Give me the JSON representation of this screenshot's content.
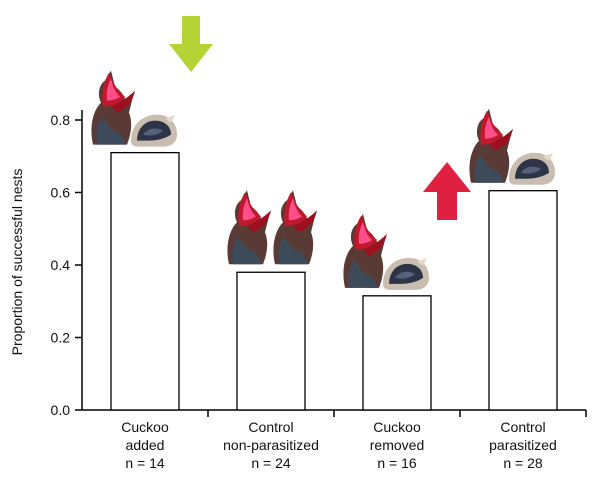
{
  "chart_data": {
    "type": "bar",
    "title": "",
    "ylabel": "Proportion of successful nests",
    "xlabel": "",
    "yticks": [
      "0.0",
      "0.2",
      "0.4",
      "0.6",
      "0.8"
    ],
    "ylim": [
      0,
      0.8
    ],
    "categories": [
      {
        "lines": [
          "Cuckoo",
          "added",
          "n = 14"
        ]
      },
      {
        "lines": [
          "Control",
          "non-parasitized",
          "n = 24"
        ]
      },
      {
        "lines": [
          "Cuckoo",
          "removed",
          "n = 16"
        ]
      },
      {
        "lines": [
          "Control",
          "parasitized",
          "n = 28"
        ]
      }
    ],
    "values": [
      0.71,
      0.38,
      0.315,
      0.605
    ],
    "bar_fill": "#ffffff",
    "bar_stroke": "#000000",
    "grid": false,
    "annotations": [
      {
        "category_index": 0,
        "icon": "down-arrow-icon",
        "color": "#b5d334",
        "chicks": [
          "cuckoo-chick-icon",
          "host-chick-icon"
        ]
      },
      {
        "category_index": 1,
        "icon": "none",
        "chicks": [
          "cuckoo-chick-icon",
          "cuckoo-chick-icon"
        ]
      },
      {
        "category_index": 2,
        "icon": "up-arrow-icon",
        "color": "#e02040",
        "chicks": [
          "cuckoo-chick-icon",
          "host-chick-icon"
        ]
      },
      {
        "category_index": 3,
        "icon": "none",
        "chicks": [
          "cuckoo-chick-icon",
          "host-chick-icon"
        ]
      }
    ]
  }
}
